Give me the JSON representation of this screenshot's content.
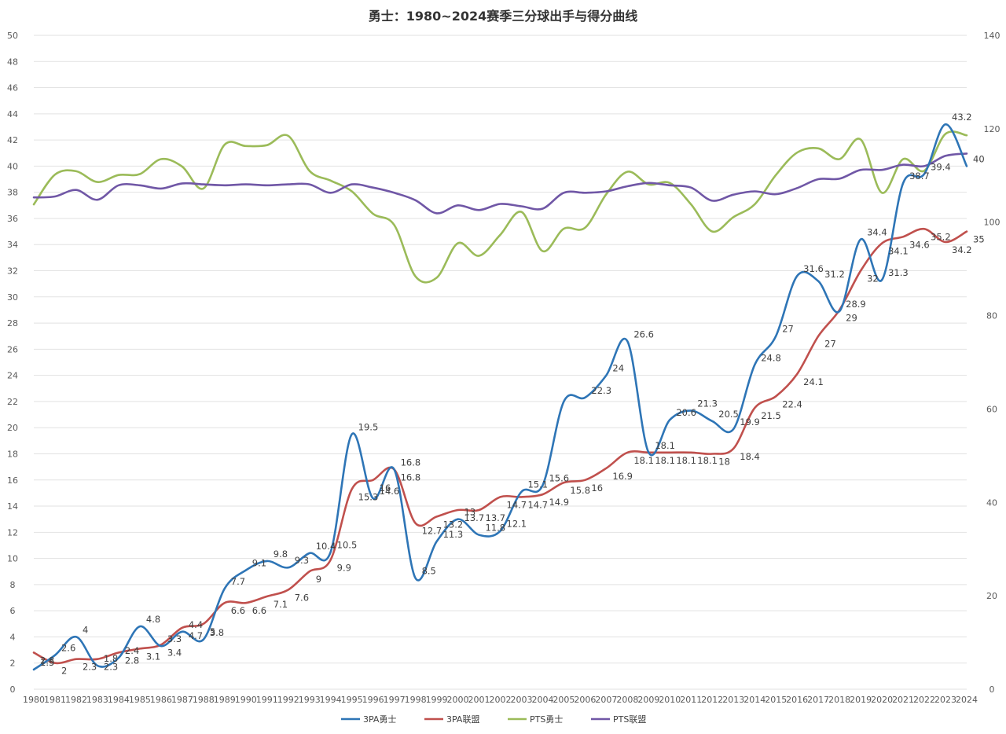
{
  "chart_data": {
    "type": "line",
    "title": "勇士：1980~2024赛季三分球出手与得分曲线",
    "xlabel": "",
    "ylabel": "",
    "y2label": "",
    "grid": true,
    "legend_position": "bottom",
    "ylim": [
      0,
      50
    ],
    "y_ticks": [
      "0",
      "2",
      "4",
      "6",
      "8",
      "10",
      "12",
      "14",
      "16",
      "18",
      "20",
      "22",
      "24",
      "26",
      "28",
      "30",
      "32",
      "34",
      "36",
      "38",
      "40",
      "42",
      "44",
      "46",
      "48",
      "50"
    ],
    "y2lim": [
      0,
      140
    ],
    "y2_ticks": [
      "0",
      "20",
      "40",
      "60",
      "80",
      "100",
      "120",
      "140"
    ],
    "categories": [
      "1980",
      "1981",
      "1982",
      "1983",
      "1984",
      "1985",
      "1986",
      "1987",
      "1988",
      "1989",
      "1990",
      "1991",
      "1992",
      "1993",
      "1994",
      "1995",
      "1996",
      "1997",
      "1998",
      "1999",
      "2000",
      "2001",
      "2002",
      "2003",
      "2004",
      "2005",
      "2006",
      "2007",
      "2008",
      "2009",
      "2010",
      "2011",
      "2012",
      "2013",
      "2014",
      "2015",
      "2016",
      "2017",
      "2018",
      "2019",
      "2020",
      "2021",
      "2022",
      "2023",
      "2024"
    ],
    "series": [
      {
        "name": "3PA勇士",
        "color": "#2e75b6",
        "axis": "left",
        "labeled": true,
        "values": [
          1.5,
          2.6,
          4,
          1.8,
          2.4,
          4.8,
          3.3,
          4.4,
          3.8,
          7.7,
          9.1,
          9.8,
          9.3,
          10.4,
          10.5,
          19.5,
          14.6,
          16.8,
          8.5,
          11.3,
          13,
          11.8,
          12.1,
          15.1,
          15.6,
          22,
          22.3,
          24,
          26.6,
          18.1,
          20.6,
          21.3,
          20.5,
          19.9,
          24.8,
          27,
          31.6,
          31.2,
          28.9,
          34.4,
          31.3,
          38.7,
          39.4,
          43.2,
          40
        ],
        "labels": [
          "1.5",
          "2.6",
          "4",
          "1.8",
          "2.4",
          "4.8",
          "3.3",
          "4.4",
          "3.8",
          "7.7",
          "9.1",
          "9.8",
          "9.3",
          "10.4",
          "10.5",
          "19.5",
          "14.6",
          "16.8",
          "8.5",
          "11.3",
          "13",
          "11.8",
          "12.1",
          "15.1",
          "15.6",
          "",
          "22.3",
          "24",
          "26.6",
          "18.1",
          "20.6",
          "21.3",
          "20.5",
          "19.9",
          "24.8",
          "27",
          "31.6",
          "31.2",
          "28.9",
          "34.4",
          "31.3",
          "38.7",
          "39.4",
          "43.2",
          "40"
        ]
      },
      {
        "name": "3PA联盟",
        "color": "#c0504d",
        "axis": "left",
        "labeled": true,
        "values": [
          2.8,
          2,
          2.3,
          2.3,
          2.8,
          3.1,
          3.4,
          4.7,
          5,
          6.6,
          6.6,
          7.1,
          7.6,
          9,
          9.9,
          15.3,
          16,
          16.8,
          12.7,
          13.2,
          13.7,
          13.7,
          14.7,
          14.7,
          14.9,
          15.8,
          16,
          16.9,
          18.1,
          18.1,
          18.1,
          18.1,
          18,
          18.4,
          21.5,
          22.4,
          24.1,
          27,
          29,
          32,
          34.1,
          34.6,
          35.2,
          34.2,
          35
        ],
        "labels": [
          "2.8",
          "2",
          "2.3",
          "2.3",
          "2.8",
          "3.1",
          "3.4",
          "4.7",
          "5",
          "6.6",
          "6.6",
          "7.1",
          "7.6",
          "9",
          "9.9",
          "15.3",
          "16",
          "16.8",
          "12.7",
          "13.2",
          "13.7",
          "13.7",
          "14.7",
          "14.7",
          "14.9",
          "15.8",
          "16",
          "16.9",
          "18.1",
          "18.1",
          "18.1",
          "18.1",
          "18",
          "18.4",
          "21.5",
          "22.4",
          "24.1",
          "27",
          "29",
          "32",
          "34.1",
          "34.6",
          "35.2",
          "34.2",
          "35"
        ]
      },
      {
        "name": "PTS勇士",
        "color": "#9bbb59",
        "axis": "right",
        "labeled": false,
        "values": [
          103.8,
          110.2,
          110.9,
          108.6,
          110.1,
          110.3,
          113.5,
          111.9,
          107.2,
          116.6,
          116.3,
          116.5,
          118.5,
          111,
          108.9,
          106.6,
          101.8,
          99.4,
          88.4,
          88.1,
          95.5,
          92.8,
          97.3,
          102.2,
          93.8,
          98.6,
          98.8,
          106,
          110.8,
          108.1,
          108.4,
          103.8,
          98,
          101.1,
          103.8,
          110.1,
          114.9,
          115.8,
          113.5,
          117.7,
          106.3,
          113.5,
          111,
          118.9,
          118.6
        ]
      },
      {
        "name": "PTS联盟",
        "color": "#7057a6",
        "axis": "right",
        "labeled": false,
        "values": [
          105.3,
          105.5,
          106.9,
          104.8,
          107.9,
          107.9,
          107.2,
          108.3,
          108.1,
          107.9,
          108.1,
          107.9,
          108.1,
          108.1,
          106.3,
          108.1,
          107.4,
          106.3,
          104.7,
          101.9,
          103.6,
          102.6,
          103.9,
          103.4,
          102.9,
          106.3,
          106.3,
          106.6,
          107.7,
          108.4,
          107.9,
          107.4,
          104.6,
          105.9,
          106.6,
          106,
          107.3,
          109.2,
          109.3,
          111.2,
          111.2,
          112.3,
          112,
          114.2,
          114.7
        ]
      }
    ]
  }
}
